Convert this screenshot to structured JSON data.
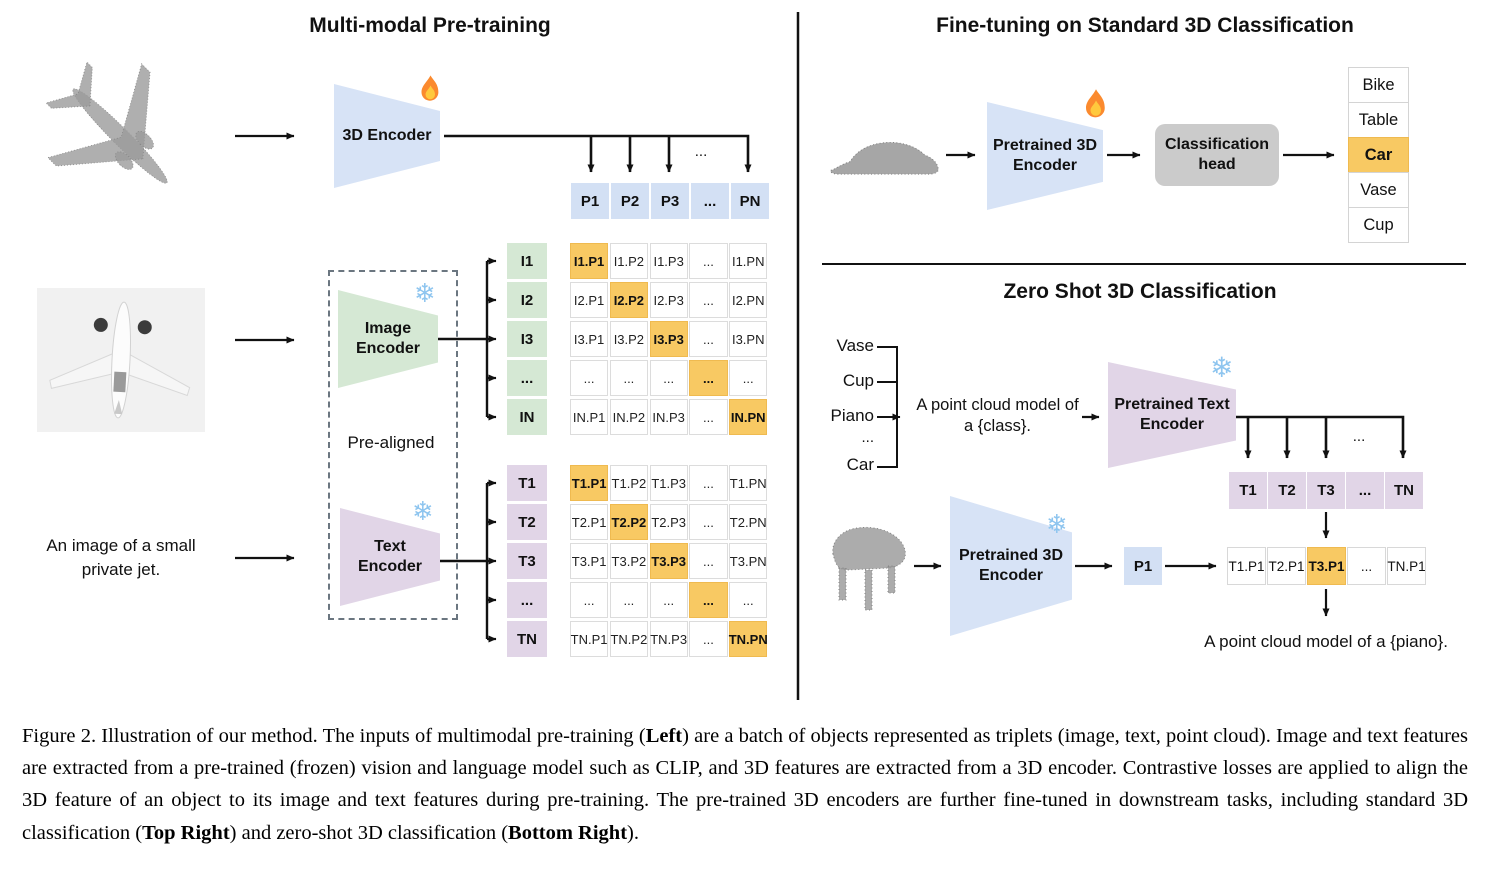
{
  "pretraining": {
    "title": "Multi-modal Pre-training",
    "encoder_3d_label": "3D Encoder",
    "trunk_dots": "...",
    "p_row": [
      {
        "t": "P1"
      },
      {
        "t": "P2"
      },
      {
        "t": "P3"
      },
      {
        "t": "..."
      },
      {
        "t": "PN"
      }
    ],
    "image_encoder_label": "Image\nEncoder",
    "text_encoder_label": "Text\nEncoder",
    "pre_aligned_label": "Pre-aligned",
    "text_input": "An image of a small\nprivate jet.",
    "i_labels": [
      {
        "t": "I1"
      },
      {
        "t": "I2"
      },
      {
        "t": "I3"
      },
      {
        "t": "..."
      },
      {
        "t": "IN"
      }
    ],
    "i_matrix": [
      {
        "t": "I1.P1",
        "hl": true
      },
      {
        "t": "I1.P2"
      },
      {
        "t": "I1.P3"
      },
      {
        "t": "..."
      },
      {
        "t": "I1.PN"
      },
      {
        "t": "I2.P1"
      },
      {
        "t": "I2.P2",
        "hl": true
      },
      {
        "t": "I2.P3"
      },
      {
        "t": "..."
      },
      {
        "t": "I2.PN"
      },
      {
        "t": "I3.P1"
      },
      {
        "t": "I3.P2"
      },
      {
        "t": "I3.P3",
        "hl": true
      },
      {
        "t": "..."
      },
      {
        "t": "I3.PN"
      },
      {
        "t": "..."
      },
      {
        "t": "..."
      },
      {
        "t": "..."
      },
      {
        "t": "...",
        "hl": true
      },
      {
        "t": "..."
      },
      {
        "t": "IN.P1"
      },
      {
        "t": "IN.P2"
      },
      {
        "t": "IN.P3"
      },
      {
        "t": "..."
      },
      {
        "t": "IN.PN",
        "hl": true
      }
    ],
    "t_labels": [
      {
        "t": "T1"
      },
      {
        "t": "T2"
      },
      {
        "t": "T3"
      },
      {
        "t": "..."
      },
      {
        "t": "TN"
      }
    ],
    "t_matrix": [
      {
        "t": "T1.P1",
        "hl": true
      },
      {
        "t": "T1.P2"
      },
      {
        "t": "T1.P3"
      },
      {
        "t": "..."
      },
      {
        "t": "T1.PN"
      },
      {
        "t": "T2.P1"
      },
      {
        "t": "T2.P2",
        "hl": true
      },
      {
        "t": "T2.P3"
      },
      {
        "t": "..."
      },
      {
        "t": "T2.PN"
      },
      {
        "t": "T3.P1"
      },
      {
        "t": "T3.P2"
      },
      {
        "t": "T3.P3",
        "hl": true
      },
      {
        "t": "..."
      },
      {
        "t": "T3.PN"
      },
      {
        "t": "..."
      },
      {
        "t": "..."
      },
      {
        "t": "..."
      },
      {
        "t": "...",
        "hl": true
      },
      {
        "t": "..."
      },
      {
        "t": "TN.P1"
      },
      {
        "t": "TN.P2"
      },
      {
        "t": "TN.P3"
      },
      {
        "t": "..."
      },
      {
        "t": "TN.PN",
        "hl": true
      }
    ]
  },
  "finetuning": {
    "title": "Fine-tuning on Standard 3D Classification",
    "encoder_label": "Pretrained 3D\nEncoder",
    "head_label": "Classification\nhead",
    "classes": [
      {
        "t": "Bike"
      },
      {
        "t": "Table"
      },
      {
        "t": "Car",
        "hl": true
      },
      {
        "t": "Vase"
      },
      {
        "t": "Cup"
      }
    ]
  },
  "zeroshot": {
    "title": "Zero Shot 3D Classification",
    "class_list": [
      {
        "t": "Vase"
      },
      {
        "t": "Cup"
      },
      {
        "t": "Piano"
      },
      {
        "t": "..."
      },
      {
        "t": "Car"
      }
    ],
    "prompt": "A point cloud model of\na {class}.",
    "text_encoder_label": "Pretrained Text\nEncoder",
    "trunk_dots": "...",
    "t_row": [
      {
        "t": "T1"
      },
      {
        "t": "T2"
      },
      {
        "t": "T3"
      },
      {
        "t": "..."
      },
      {
        "t": "TN"
      }
    ],
    "encoder_label": "Pretrained 3D\nEncoder",
    "p1_label": "P1",
    "result_row": [
      {
        "t": "T1.P1"
      },
      {
        "t": "T2.P1"
      },
      {
        "t": "T3.P1",
        "hl": true
      },
      {
        "t": "..."
      },
      {
        "t": "TN.P1"
      }
    ],
    "result_caption": "A point cloud model of a {piano}."
  },
  "icons": {
    "trainable": "flame-icon",
    "frozen": "snowflake-icon",
    "snowflake_glyph": "❄"
  },
  "colors": {
    "encoder_blue": "#d7e3f6",
    "feature_blue": "#d3e0f4",
    "image_green": "#d5e8d4",
    "text_purple": "#e1d5e7",
    "highlight_orange": "#f8c963",
    "head_gray": "#cbcbcb"
  },
  "caption": {
    "segments": [
      {
        "t": "Figure 2. Illustration of our method. The inputs of multimodal pre-training ("
      },
      {
        "t": "Left",
        "b": true
      },
      {
        "t": ") are a batch of objects represented as triplets (image, text, point cloud). Image and text features are extracted from a pre-trained (frozen) vision and language model such as CLIP, and 3D features are extracted from a 3D encoder. Contrastive losses are applied to align the 3D feature of an object to its image and text features during pre-training. The pre-trained 3D encoders are further fine-tuned in downstream tasks, including standard 3D classification ("
      },
      {
        "t": "Top Right",
        "b": true
      },
      {
        "t": ") and zero-shot 3D classification ("
      },
      {
        "t": "Bottom Right",
        "b": true
      },
      {
        "t": ")."
      }
    ]
  }
}
